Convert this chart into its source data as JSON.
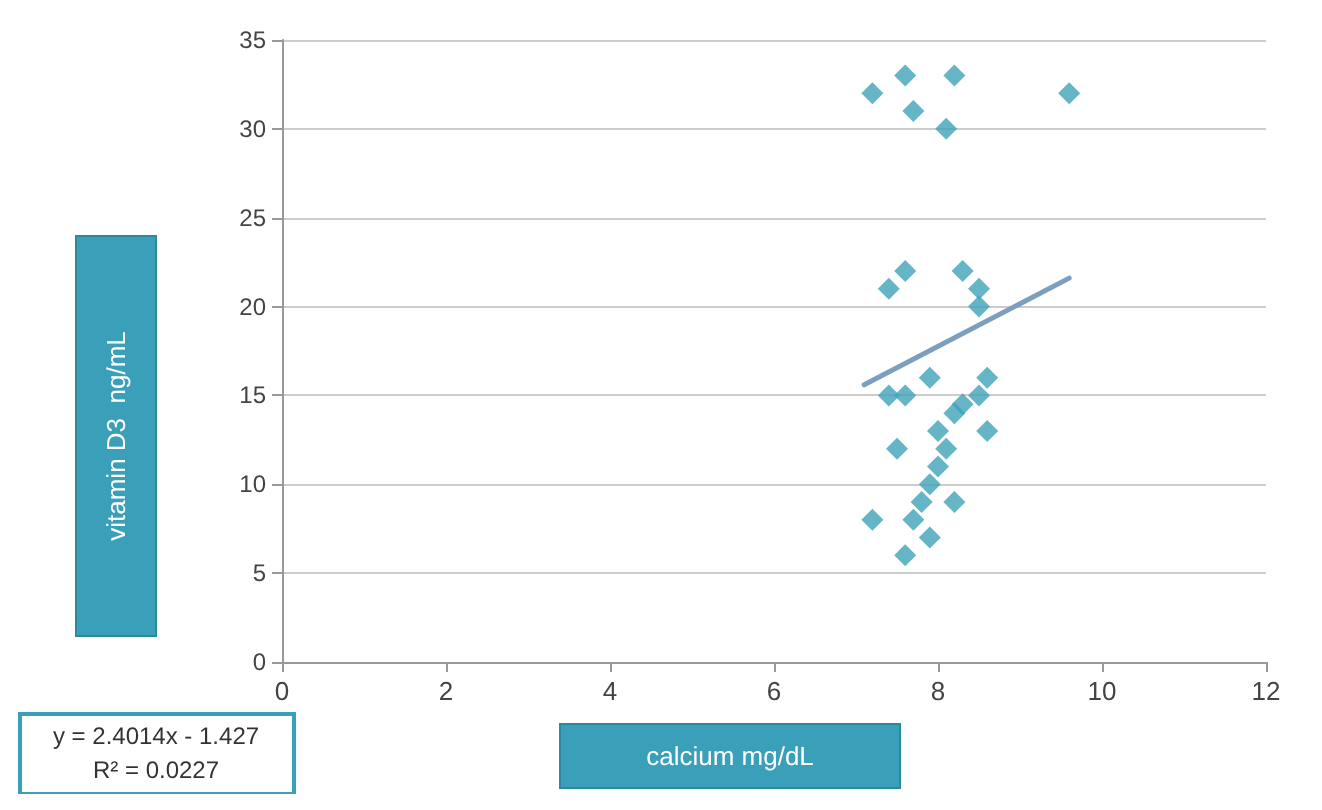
{
  "chart_data": {
    "type": "scatter",
    "xlabel": "calcium mg/dL",
    "ylabel": "vitamin D3  ng/mL",
    "xlim": [
      0,
      12
    ],
    "xticks": [
      0,
      2,
      4,
      6,
      8,
      10,
      12
    ],
    "ylim": [
      0,
      35
    ],
    "yticks": [
      0,
      5,
      10,
      15,
      20,
      25,
      30,
      35
    ],
    "grid": "y",
    "marker": "diamond",
    "annotations": [
      "y = 2.4014x - 1.427",
      "R² = 0.0227"
    ],
    "series": [
      {
        "color": "#3ea3b9",
        "x": [
          7.2,
          7.6,
          7.7,
          8.2,
          8.1,
          9.6,
          7.4,
          7.6,
          8.3,
          8.5,
          8.5,
          7.4,
          7.6,
          7.9,
          8.6,
          8.5,
          8.3,
          8.2,
          8.0,
          8.6,
          7.5,
          8.1,
          8.0,
          7.9,
          8.2,
          7.8,
          7.7,
          7.2,
          7.6,
          7.9
        ],
        "values": [
          32,
          33,
          31,
          33,
          30,
          32,
          21,
          22,
          22,
          21,
          20,
          15,
          15,
          16,
          16,
          15,
          14.5,
          14,
          13,
          13,
          12,
          12,
          11,
          10,
          9,
          9,
          8,
          8,
          6,
          7
        ]
      },
      {
        "type": "line",
        "marker": "none",
        "color": "#7c9fbd",
        "x": [
          7.1,
          9.6
        ],
        "values": [
          15.6,
          21.6
        ]
      }
    ]
  }
}
